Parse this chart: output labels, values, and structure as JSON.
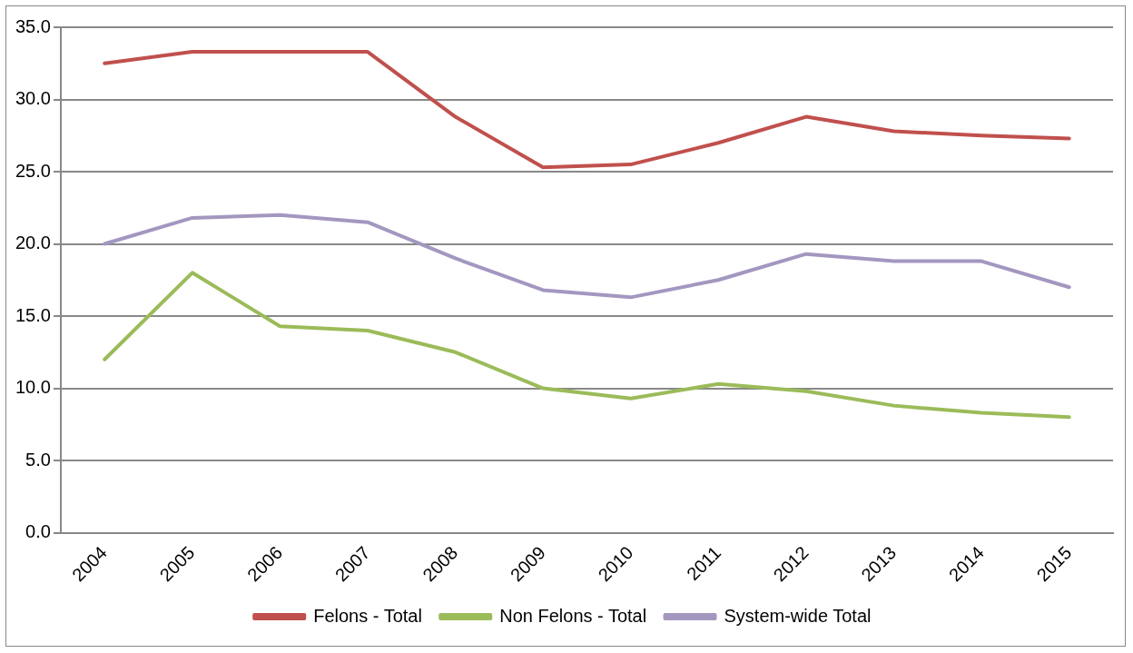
{
  "chart_data": {
    "type": "line",
    "categories": [
      "2004",
      "2005",
      "2006",
      "2007",
      "2008",
      "2009",
      "2010",
      "2011",
      "2012",
      "2013",
      "2014",
      "2015"
    ],
    "series": [
      {
        "name": "Felons - Total",
        "color": "#c0504d",
        "values": [
          32.5,
          33.3,
          33.3,
          33.3,
          28.8,
          25.3,
          25.5,
          27.0,
          28.8,
          27.8,
          27.5,
          27.3
        ]
      },
      {
        "name": "Non Felons - Total",
        "color": "#9bbb59",
        "values": [
          12.0,
          18.0,
          14.3,
          14.0,
          12.5,
          10.0,
          9.3,
          10.3,
          9.8,
          8.8,
          8.3,
          8.0
        ]
      },
      {
        "name": "System-wide Total",
        "color": "#a397c0",
        "values": [
          20.0,
          21.8,
          22.0,
          21.5,
          19.0,
          16.8,
          16.3,
          17.5,
          19.3,
          18.8,
          18.8,
          17.0
        ]
      }
    ],
    "ylim": [
      0,
      35
    ],
    "yticks": [
      {
        "value": 0,
        "label": "0.0"
      },
      {
        "value": 5,
        "label": "5.0"
      },
      {
        "value": 10,
        "label": "10.0"
      },
      {
        "value": 15,
        "label": "15.0"
      },
      {
        "value": 20,
        "label": "20.0"
      },
      {
        "value": 25,
        "label": "25.0"
      },
      {
        "value": 30,
        "label": "30.0"
      },
      {
        "value": 35,
        "label": "35.0"
      }
    ],
    "grid": "y",
    "legend": "bottom",
    "marker": "none",
    "line_style": "solid"
  }
}
